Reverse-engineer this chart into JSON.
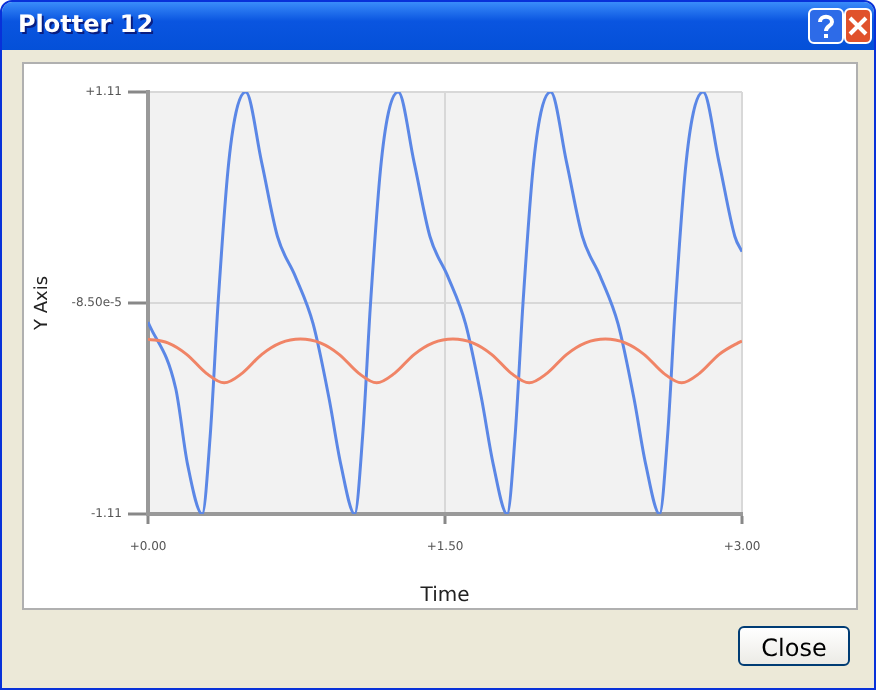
{
  "chart_data": {
    "type": "line",
    "title": "Plotter 12",
    "xlabel": "Time",
    "ylabel": "Y Axis",
    "xlim": [
      0,
      3
    ],
    "xticks": [
      {
        "value": 0,
        "label": "+0.00"
      },
      {
        "value": 1.5,
        "label": "+1.50"
      },
      {
        "value": 3,
        "label": "+3.00"
      }
    ],
    "ylim": [
      -1.11,
      1.11
    ],
    "yticks": [
      {
        "value": 1.11,
        "label": "+1.11"
      },
      {
        "value": -8.5e-05,
        "label": "-8.50e-5"
      },
      {
        "value": -1.11,
        "label": "-1.11"
      }
    ],
    "grid": true,
    "marker": "none",
    "line_style": "solid",
    "annotations": [
      "Close"
    ],
    "series": [
      {
        "color": "#f08466",
        "x": [
          0,
          0.1,
          0.195,
          0.295,
          0.385,
          0.475,
          0.575,
          0.67,
          0.77,
          0.87,
          0.965,
          1.065,
          1.155,
          1.245,
          1.345,
          1.44,
          1.54,
          1.64,
          1.735,
          1.835,
          1.925,
          2.015,
          2.115,
          2.21,
          2.31,
          2.41,
          2.505,
          2.605,
          2.695,
          2.785,
          2.885,
          2.98,
          3.0
        ],
        "values": [
          -0.19,
          -0.21,
          -0.27,
          -0.37,
          -0.42,
          -0.37,
          -0.27,
          -0.21,
          -0.19,
          -0.21,
          -0.27,
          -0.37,
          -0.42,
          -0.37,
          -0.27,
          -0.21,
          -0.19,
          -0.21,
          -0.27,
          -0.37,
          -0.42,
          -0.37,
          -0.27,
          -0.21,
          -0.19,
          -0.21,
          -0.27,
          -0.37,
          -0.42,
          -0.37,
          -0.27,
          -0.21,
          -0.2
        ]
      },
      {
        "color": "#5b87e6",
        "x": [
          0,
          0.14,
          0.2,
          0.274,
          0.314,
          0.354,
          0.404,
          0.444,
          0.494,
          0.574,
          0.654,
          0.744,
          0.834,
          0.914,
          0.974,
          1.044,
          1.084,
          1.124,
          1.174,
          1.214,
          1.264,
          1.344,
          1.424,
          1.514,
          1.604,
          1.684,
          1.744,
          1.814,
          1.854,
          1.894,
          1.944,
          1.984,
          2.034,
          2.114,
          2.194,
          2.284,
          2.374,
          2.454,
          2.514,
          2.584,
          2.624,
          2.664,
          2.714,
          2.754,
          2.804,
          2.884,
          2.964,
          3.0
        ],
        "values": [
          -0.1,
          -0.45,
          -0.85,
          -1.11,
          -0.7,
          0,
          0.7,
          1,
          1.11,
          0.74,
          0.35,
          0.14,
          -0.11,
          -0.5,
          -0.85,
          -1.11,
          -0.7,
          0,
          0.7,
          1,
          1.11,
          0.74,
          0.35,
          0.14,
          -0.11,
          -0.5,
          -0.85,
          -1.11,
          -0.7,
          0,
          0.7,
          1,
          1.11,
          0.74,
          0.35,
          0.14,
          -0.11,
          -0.5,
          -0.85,
          -1.11,
          -0.7,
          0,
          0.7,
          1,
          1.11,
          0.74,
          0.35,
          0.27
        ]
      }
    ]
  }
}
